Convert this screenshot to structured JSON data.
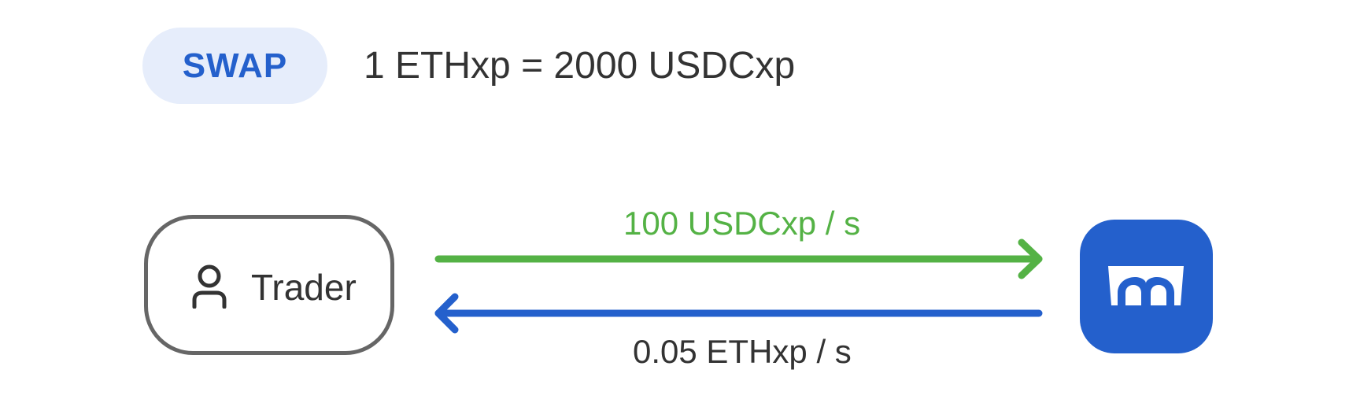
{
  "header": {
    "badge_label": "SWAP",
    "rate_text": "1 ETHxp = 2000 USDCxp"
  },
  "trader": {
    "label": "Trader",
    "icon": "user-icon"
  },
  "flows": {
    "outgoing_label": "100 USDCxp / s",
    "incoming_label": "0.05 ETHxp / s"
  },
  "pool": {
    "icon": "bridge-icon"
  },
  "colors": {
    "accent_blue": "#2460cc",
    "badge_background": "#e6edfb",
    "flow_green": "#54b245",
    "text_dark": "#333333",
    "border_gray": "#666666"
  }
}
